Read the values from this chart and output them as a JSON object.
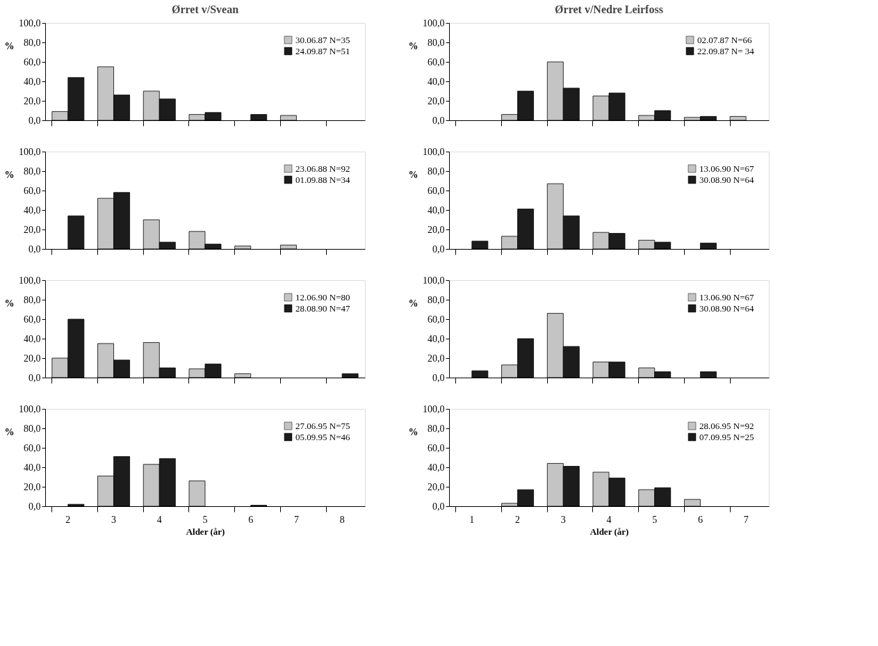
{
  "chart_data": [
    {
      "type": "bar",
      "title": "Ørret v/Svean",
      "categories": [
        "2",
        "3",
        "4",
        "5",
        "6",
        "7",
        "8"
      ],
      "series": [
        {
          "name": "30.06.87  N=35",
          "color": "#c4c4c4",
          "values": [
            9,
            55,
            30,
            6,
            null,
            5,
            null
          ]
        },
        {
          "name": "24.09.87  N=51",
          "color": "#1c1c1c",
          "values": [
            44,
            26,
            22,
            8,
            6,
            null,
            null
          ]
        }
      ],
      "ylabel": "%",
      "ylim": [
        0,
        100
      ],
      "yticks": [
        {
          "value": 0,
          "label": "0,0"
        },
        {
          "value": 20,
          "label": "20,0"
        },
        {
          "value": 40,
          "label": "40,0"
        },
        {
          "value": 60,
          "label": "60,0"
        },
        {
          "value": 80,
          "label": "80,0"
        },
        {
          "value": 100,
          "label": "100,0"
        }
      ],
      "legend": "top right",
      "grid": false,
      "tick_labels": "y"
    },
    {
      "type": "bar",
      "title": "Ørret v/Nedre Leirfoss",
      "categories": [
        "1",
        "2",
        "3",
        "4",
        "5",
        "6",
        "7"
      ],
      "series": [
        {
          "name": "02.07.87  N=66",
          "color": "#c4c4c4",
          "values": [
            null,
            6,
            60,
            25,
            5,
            3,
            4
          ]
        },
        {
          "name": "22.09.87  N= 34",
          "color": "#1c1c1c",
          "values": [
            null,
            30,
            33,
            28,
            10,
            4,
            null
          ]
        }
      ],
      "ylabel": "%",
      "ylim": [
        0,
        100
      ],
      "yticks": [
        {
          "value": 0,
          "label": "0,0"
        },
        {
          "value": 20,
          "label": "20,0"
        },
        {
          "value": 40,
          "label": "40,0"
        },
        {
          "value": 60,
          "label": "60,0"
        },
        {
          "value": 80,
          "label": "80,0"
        },
        {
          "value": 100,
          "label": "100,0"
        }
      ],
      "legend": "top right",
      "grid": false,
      "tick_labels": "y"
    },
    {
      "type": "bar",
      "categories": [
        "2",
        "3",
        "4",
        "5",
        "6",
        "7",
        "8"
      ],
      "series": [
        {
          "name": "23.06.88  N=92",
          "color": "#c4c4c4",
          "values": [
            null,
            52,
            30,
            18,
            3,
            4,
            null
          ]
        },
        {
          "name": "01.09.88  N=34",
          "color": "#1c1c1c",
          "values": [
            34,
            58,
            7,
            5,
            null,
            null,
            null
          ]
        }
      ],
      "ylabel": "%",
      "ylim": [
        0,
        100
      ],
      "yticks": [
        {
          "value": 0,
          "label": "0,0"
        },
        {
          "value": 20,
          "label": "20,0"
        },
        {
          "value": 40,
          "label": "40,0"
        },
        {
          "value": 60,
          "label": "60,0"
        },
        {
          "value": 80,
          "label": "80,0"
        },
        {
          "value": 100,
          "label": "100,0"
        }
      ],
      "legend": "top right",
      "grid": false,
      "tick_labels": "y"
    },
    {
      "type": "bar",
      "categories": [
        "1",
        "2",
        "3",
        "4",
        "5",
        "6",
        "7"
      ],
      "series": [
        {
          "name": "13.06.90  N=67",
          "color": "#c4c4c4",
          "values": [
            null,
            13,
            67,
            17,
            9,
            null,
            null
          ]
        },
        {
          "name": "30.08.90  N=64",
          "color": "#1c1c1c",
          "values": [
            8,
            41,
            34,
            16,
            7,
            6,
            null
          ]
        }
      ],
      "ylabel": "%",
      "ylim": [
        0,
        100
      ],
      "yticks": [
        {
          "value": 0,
          "label": "0,0"
        },
        {
          "value": 20,
          "label": "20,0"
        },
        {
          "value": 40,
          "label": "40,0"
        },
        {
          "value": 60,
          "label": "60,0"
        },
        {
          "value": 80,
          "label": "80,0"
        },
        {
          "value": 100,
          "label": "100,0"
        }
      ],
      "legend": "top right",
      "grid": false,
      "tick_labels": "y"
    },
    {
      "type": "bar",
      "categories": [
        "2",
        "3",
        "4",
        "5",
        "6",
        "7",
        "8"
      ],
      "series": [
        {
          "name": "12.06.90  N=80",
          "color": "#c4c4c4",
          "values": [
            20,
            35,
            36,
            9,
            4,
            null,
            null
          ]
        },
        {
          "name": "28.08.90  N=47",
          "color": "#1c1c1c",
          "values": [
            60,
            18,
            10,
            14,
            null,
            null,
            4
          ]
        }
      ],
      "ylabel": "%",
      "ylim": [
        0,
        100
      ],
      "yticks": [
        {
          "value": 0,
          "label": "0,0"
        },
        {
          "value": 20,
          "label": "20,0"
        },
        {
          "value": 40,
          "label": "40,0"
        },
        {
          "value": 60,
          "label": "60,0"
        },
        {
          "value": 80,
          "label": "80,0"
        },
        {
          "value": 100,
          "label": "100,0"
        }
      ],
      "legend": "top right",
      "grid": false,
      "tick_labels": "y"
    },
    {
      "type": "bar",
      "categories": [
        "1",
        "2",
        "3",
        "4",
        "5",
        "6",
        "7"
      ],
      "series": [
        {
          "name": "13.06.90  N=67",
          "color": "#c4c4c4",
          "values": [
            null,
            13,
            66,
            16,
            10,
            null,
            null
          ]
        },
        {
          "name": "30.08.90  N=64",
          "color": "#1c1c1c",
          "values": [
            7,
            40,
            32,
            16,
            6,
            6,
            null
          ]
        }
      ],
      "ylabel": "%",
      "ylim": [
        0,
        100
      ],
      "yticks": [
        {
          "value": 0,
          "label": "0,0"
        },
        {
          "value": 20,
          "label": "20,0"
        },
        {
          "value": 40,
          "label": "40,0"
        },
        {
          "value": 60,
          "label": "60,0"
        },
        {
          "value": 80,
          "label": "80,0"
        },
        {
          "value": 100,
          "label": "100,0"
        }
      ],
      "legend": "top right",
      "grid": false,
      "tick_labels": "y"
    },
    {
      "type": "bar",
      "categories": [
        "2",
        "3",
        "4",
        "5",
        "6",
        "7",
        "8"
      ],
      "series": [
        {
          "name": "27.06.95  N=75",
          "color": "#c4c4c4",
          "values": [
            null,
            31,
            43,
            26,
            null,
            null,
            null
          ]
        },
        {
          "name": "05.09.95  N=46",
          "color": "#1c1c1c",
          "values": [
            2,
            51,
            49,
            null,
            1,
            null,
            null
          ]
        }
      ],
      "xlabel": "Alder (år)",
      "ylabel": "%",
      "ylim": [
        0,
        100
      ],
      "yticks": [
        {
          "value": 0,
          "label": "0,0"
        },
        {
          "value": 20,
          "label": "20,0"
        },
        {
          "value": 40,
          "label": "40,0"
        },
        {
          "value": 60,
          "label": "60,0"
        },
        {
          "value": 80,
          "label": "80,0"
        },
        {
          "value": 100,
          "label": "100,0"
        }
      ],
      "legend": "top right",
      "grid": false
    },
    {
      "type": "bar",
      "categories": [
        "1",
        "2",
        "3",
        "4",
        "5",
        "6",
        "7"
      ],
      "series": [
        {
          "name": "28.06.95  N=92",
          "color": "#c4c4c4",
          "values": [
            null,
            3,
            44,
            35,
            17,
            7,
            null
          ]
        },
        {
          "name": "07.09.95  N=25",
          "color": "#1c1c1c",
          "values": [
            null,
            17,
            41,
            29,
            19,
            null,
            null
          ]
        }
      ],
      "xlabel": "Alder (år)",
      "ylabel": "%",
      "ylim": [
        0,
        100
      ],
      "yticks": [
        {
          "value": 0,
          "label": "0,0"
        },
        {
          "value": 20,
          "label": "20,0"
        },
        {
          "value": 40,
          "label": "40,0"
        },
        {
          "value": 60,
          "label": "60,0"
        },
        {
          "value": 80,
          "label": "80,0"
        },
        {
          "value": 100,
          "label": "100,0"
        }
      ],
      "legend": "top right",
      "grid": false
    }
  ]
}
